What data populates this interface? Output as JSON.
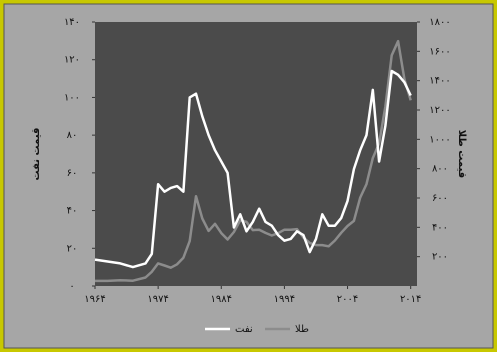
{
  "chart_data": {
    "type": "line",
    "x_label": null,
    "y_label": "قیمت نفت",
    "y2_label": "قیمت طلا",
    "x": [
      1964,
      1966,
      1968,
      1970,
      1972,
      1973,
      1974,
      1975,
      1976,
      1977,
      1978,
      1979,
      1980,
      1981,
      1982,
      1983,
      1984,
      1985,
      1986,
      1987,
      1988,
      1989,
      1990,
      1991,
      1992,
      1993,
      1994,
      1995,
      1996,
      1997,
      1998,
      1999,
      2000,
      2001,
      2002,
      2003,
      2004,
      2005,
      2006,
      2007,
      2008,
      2009,
      2010,
      2011,
      2012,
      2013,
      2014
    ],
    "series": [
      {
        "name": "نفت",
        "color": "#ffffff",
        "axis": "y",
        "values": [
          14,
          13,
          12,
          10,
          12,
          17,
          54,
          50,
          52,
          53,
          50,
          100,
          102,
          90,
          80,
          72,
          66,
          60,
          31,
          38,
          29,
          34,
          41,
          34,
          32,
          27,
          24,
          25,
          29,
          27,
          18,
          25,
          38,
          32,
          32,
          36,
          45,
          62,
          72,
          80,
          104,
          66,
          85,
          114,
          112,
          108,
          101
        ]
      },
      {
        "name": "طلا",
        "color": "#8c8c8c",
        "axis": "y2",
        "values": [
          35,
          35,
          39,
          36,
          58,
          97,
          154,
          140,
          125,
          148,
          193,
          306,
          612,
          460,
          376,
          424,
          361,
          317,
          368,
          447,
          437,
          381,
          384,
          362,
          344,
          360,
          384,
          384,
          388,
          331,
          294,
          279,
          279,
          271,
          310,
          363,
          409,
          444,
          603,
          695,
          872,
          972,
          1225,
          1572,
          1669,
          1411,
          1266
        ]
      }
    ],
    "xlim": [
      1964,
      2015
    ],
    "xticks": [
      {
        "value": 1964,
        "label": "۱۹۶۴"
      },
      {
        "value": 1974,
        "label": "۱۹۷۴"
      },
      {
        "value": 1984,
        "label": "۱۹۸۴"
      },
      {
        "value": 1994,
        "label": "۱۹۹۴"
      },
      {
        "value": 2004,
        "label": "۲۰۰۴"
      },
      {
        "value": 2014,
        "label": "۲۰۱۴"
      }
    ],
    "ylim": [
      0,
      140
    ],
    "yticks": [
      {
        "value": 0,
        "label": "۰"
      },
      {
        "value": 20,
        "label": "۲۰"
      },
      {
        "value": 40,
        "label": "۴۰"
      },
      {
        "value": 60,
        "label": "۶۰"
      },
      {
        "value": 80,
        "label": "۸۰"
      },
      {
        "value": 100,
        "label": "۱۰۰"
      },
      {
        "value": 120,
        "label": "۱۲۰"
      },
      {
        "value": 140,
        "label": "۱۴۰"
      }
    ],
    "y2lim": [
      0,
      1800
    ],
    "y2ticks": [
      {
        "value": 200,
        "label": "۲۰۰"
      },
      {
        "value": 400,
        "label": "۴۰۰"
      },
      {
        "value": 600,
        "label": "۶۰۰"
      },
      {
        "value": 800,
        "label": "۸۰۰"
      },
      {
        "value": 1000,
        "label": "۱۰۰۰"
      },
      {
        "value": 1200,
        "label": "۱۲۰۰"
      },
      {
        "value": 1400,
        "label": "۱۴۰۰"
      },
      {
        "value": 1600,
        "label": "۱۶۰۰"
      },
      {
        "value": 1800,
        "label": "۱۸۰۰"
      }
    ],
    "grid": false,
    "legend": "bottom"
  }
}
